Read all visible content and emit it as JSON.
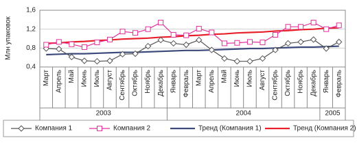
{
  "chart_data": {
    "type": "line",
    "y_label": "Млн упаковок",
    "groups": [
      {
        "label": "2003",
        "categories": [
          "Март",
          "Апрель",
          "Май",
          "Июнь",
          "Июль",
          "Август",
          "Сентябрь",
          "Октябрь",
          "Ноябрь",
          "Декабрь"
        ]
      },
      {
        "label": "2004",
        "categories": [
          "Январь",
          "Февраль",
          "Март",
          "Апрель",
          "Май",
          "Июнь",
          "Июль",
          "Август",
          "Сентябрь",
          "Октябрь",
          "Ноябрь",
          "Декабрь"
        ]
      },
      {
        "label": "2005",
        "categories": [
          "Январь",
          "Февраль"
        ]
      }
    ],
    "ylim": [
      0.4,
      1.6
    ],
    "yticks": [
      {
        "value": 0.4,
        "label": "0,4"
      },
      {
        "value": 0.8,
        "label": "0,8"
      },
      {
        "value": 1.2,
        "label": "1,2"
      },
      {
        "value": 1.6,
        "label": "1,6"
      }
    ],
    "grid": true,
    "legend": "bottom",
    "series": [
      {
        "name": "Компания 1",
        "color": "#555555",
        "marker": "diamond",
        "values": [
          0.79,
          0.78,
          0.61,
          0.53,
          0.52,
          0.53,
          0.67,
          0.68,
          0.84,
          0.97,
          0.9,
          0.87,
          0.97,
          0.76,
          0.58,
          0.52,
          0.52,
          0.58,
          0.76,
          0.9,
          0.93,
          0.98,
          0.79,
          0.93
        ]
      },
      {
        "name": "Компания 2",
        "color": "#e0309a",
        "marker": "square",
        "values": [
          0.87,
          0.93,
          0.88,
          0.82,
          0.92,
          0.98,
          1.15,
          1.12,
          1.2,
          1.34,
          1.08,
          1.07,
          1.21,
          1.13,
          0.9,
          0.91,
          0.93,
          0.92,
          1.08,
          1.25,
          1.25,
          1.34,
          1.2,
          1.28
        ]
      },
      {
        "name": "Тренд (Компания 1)",
        "color": "#3b4a7a",
        "values": [
          0.66,
          0.67,
          0.68,
          0.68,
          0.69,
          0.7,
          0.71,
          0.71,
          0.72,
          0.73,
          0.74,
          0.75,
          0.75,
          0.76,
          0.77,
          0.78,
          0.79,
          0.79,
          0.8,
          0.81,
          0.82,
          0.82,
          0.83,
          0.84
        ]
      },
      {
        "name": "Тренд (Компания 2)",
        "color": "#e8202a",
        "values": [
          0.9,
          0.91,
          0.93,
          0.94,
          0.96,
          0.97,
          0.99,
          1.0,
          1.01,
          1.03,
          1.04,
          1.06,
          1.07,
          1.09,
          1.1,
          1.12,
          1.13,
          1.14,
          1.16,
          1.17,
          1.19,
          1.2,
          1.22,
          1.23
        ]
      }
    ]
  }
}
